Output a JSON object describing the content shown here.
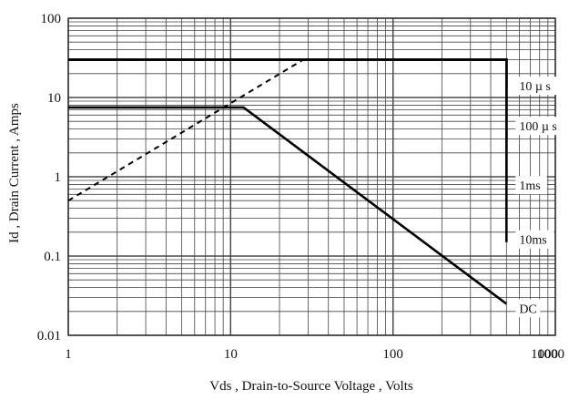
{
  "chart_data": {
    "type": "line",
    "title": "",
    "xlabel": "Vds , Drain-to-Source Voltage , Volts",
    "ylabel": "Id , Drain Current , Amps",
    "x_scale": "log",
    "y_scale": "log",
    "xlim": [
      1,
      1000
    ],
    "ylim": [
      0.01,
      100
    ],
    "x_ticks": [
      "1",
      "10",
      "100",
      "1000",
      "1000"
    ],
    "y_ticks": [
      "100",
      "10",
      "1",
      "0.1",
      "0.01"
    ],
    "grid": true,
    "colors": {
      "grid": "#444444",
      "curve": "#000000",
      "background": "#ffffff"
    },
    "series": [
      {
        "name": "10 µ s",
        "style": "solid",
        "x": [
          1,
          500,
          500
        ],
        "y": [
          30,
          30,
          13
        ]
      },
      {
        "name": "100 µ s",
        "style": "solid",
        "x": [
          1,
          500,
          500
        ],
        "y": [
          30,
          30,
          3
        ]
      },
      {
        "name": "1ms",
        "style": "solid",
        "x": [
          1,
          500,
          500
        ],
        "y": [
          30,
          30,
          0.8
        ]
      },
      {
        "name": "10ms",
        "style": "solid",
        "x": [
          1,
          500,
          500
        ],
        "y": [
          30,
          30,
          0.15
        ]
      },
      {
        "name": "DC",
        "style": "solid",
        "x": [
          1,
          12,
          500,
          500
        ],
        "y": [
          7.5,
          7.5,
          0.025,
          0.025
        ]
      },
      {
        "name": "",
        "style": "dashed",
        "x": [
          1,
          28
        ],
        "y": [
          0.5,
          30
        ]
      }
    ],
    "annotations": [
      {
        "text": "10 µ s",
        "x": 500,
        "y": 13
      },
      {
        "text": "100 µ s",
        "x": 500,
        "y": 4.5
      },
      {
        "text": "1ms",
        "x": 500,
        "y": 0.85
      },
      {
        "text": "10ms",
        "x": 500,
        "y": 0.15
      },
      {
        "text": "DC",
        "x": 500,
        "y": 0.025
      }
    ]
  }
}
